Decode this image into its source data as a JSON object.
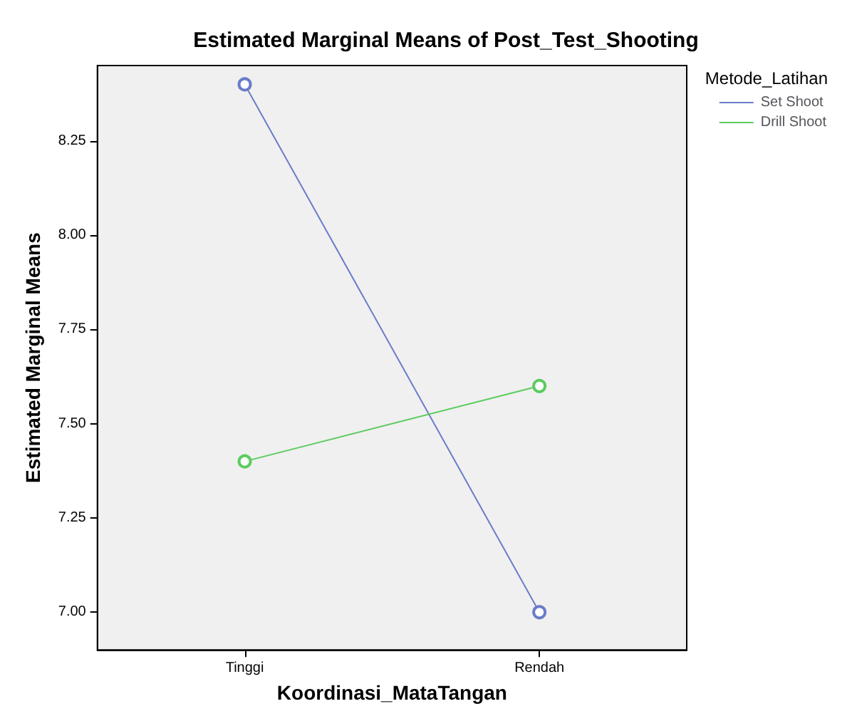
{
  "chart_data": {
    "type": "line",
    "title": "Estimated Marginal Means of Post_Test_Shooting",
    "xlabel": "Koordinasi_MataTangan",
    "ylabel": "Estimated Marginal Means",
    "legend_title": "Metode_Latihan",
    "categories": [
      "Tinggi",
      "Rendah"
    ],
    "series": [
      {
        "name": "Set Shoot",
        "color": "#6a7cc8",
        "values": [
          8.4,
          7.0
        ]
      },
      {
        "name": "Drill Shoot",
        "color": "#5ccb5f",
        "values": [
          7.4,
          7.6
        ]
      }
    ],
    "ylim": [
      6.9,
      8.45
    ],
    "yticks": [
      {
        "value": 7,
        "label": "7.00"
      },
      {
        "value": 7.25,
        "label": "7.25"
      },
      {
        "value": 7.5,
        "label": "7.50"
      },
      {
        "value": 7.75,
        "label": "7.75"
      },
      {
        "value": 8,
        "label": "8.00"
      },
      {
        "value": 8.25,
        "label": "8.25"
      }
    ],
    "grid": false,
    "legend": "top right",
    "marker": "circle",
    "line_style": "solid"
  }
}
